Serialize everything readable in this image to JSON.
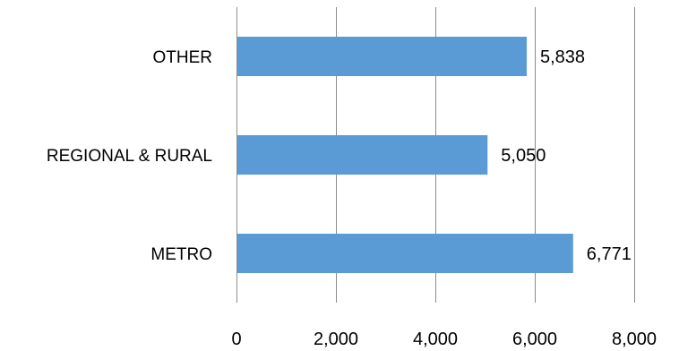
{
  "chart_data": {
    "type": "bar",
    "orientation": "horizontal",
    "categories": [
      "OTHER",
      "REGIONAL & RURAL",
      "METRO"
    ],
    "values": [
      5838,
      5050,
      6771
    ],
    "data_labels": [
      "5,838",
      "5,050",
      "6,771"
    ],
    "xlim": [
      0,
      8000
    ],
    "x_ticks": [
      0,
      2000,
      4000,
      6000,
      8000
    ],
    "x_tick_labels": [
      "0",
      "2,000",
      "4,000",
      "6,000",
      "8,000"
    ],
    "grid": true,
    "legend": "none",
    "bar_color": "#5b9bd5"
  }
}
